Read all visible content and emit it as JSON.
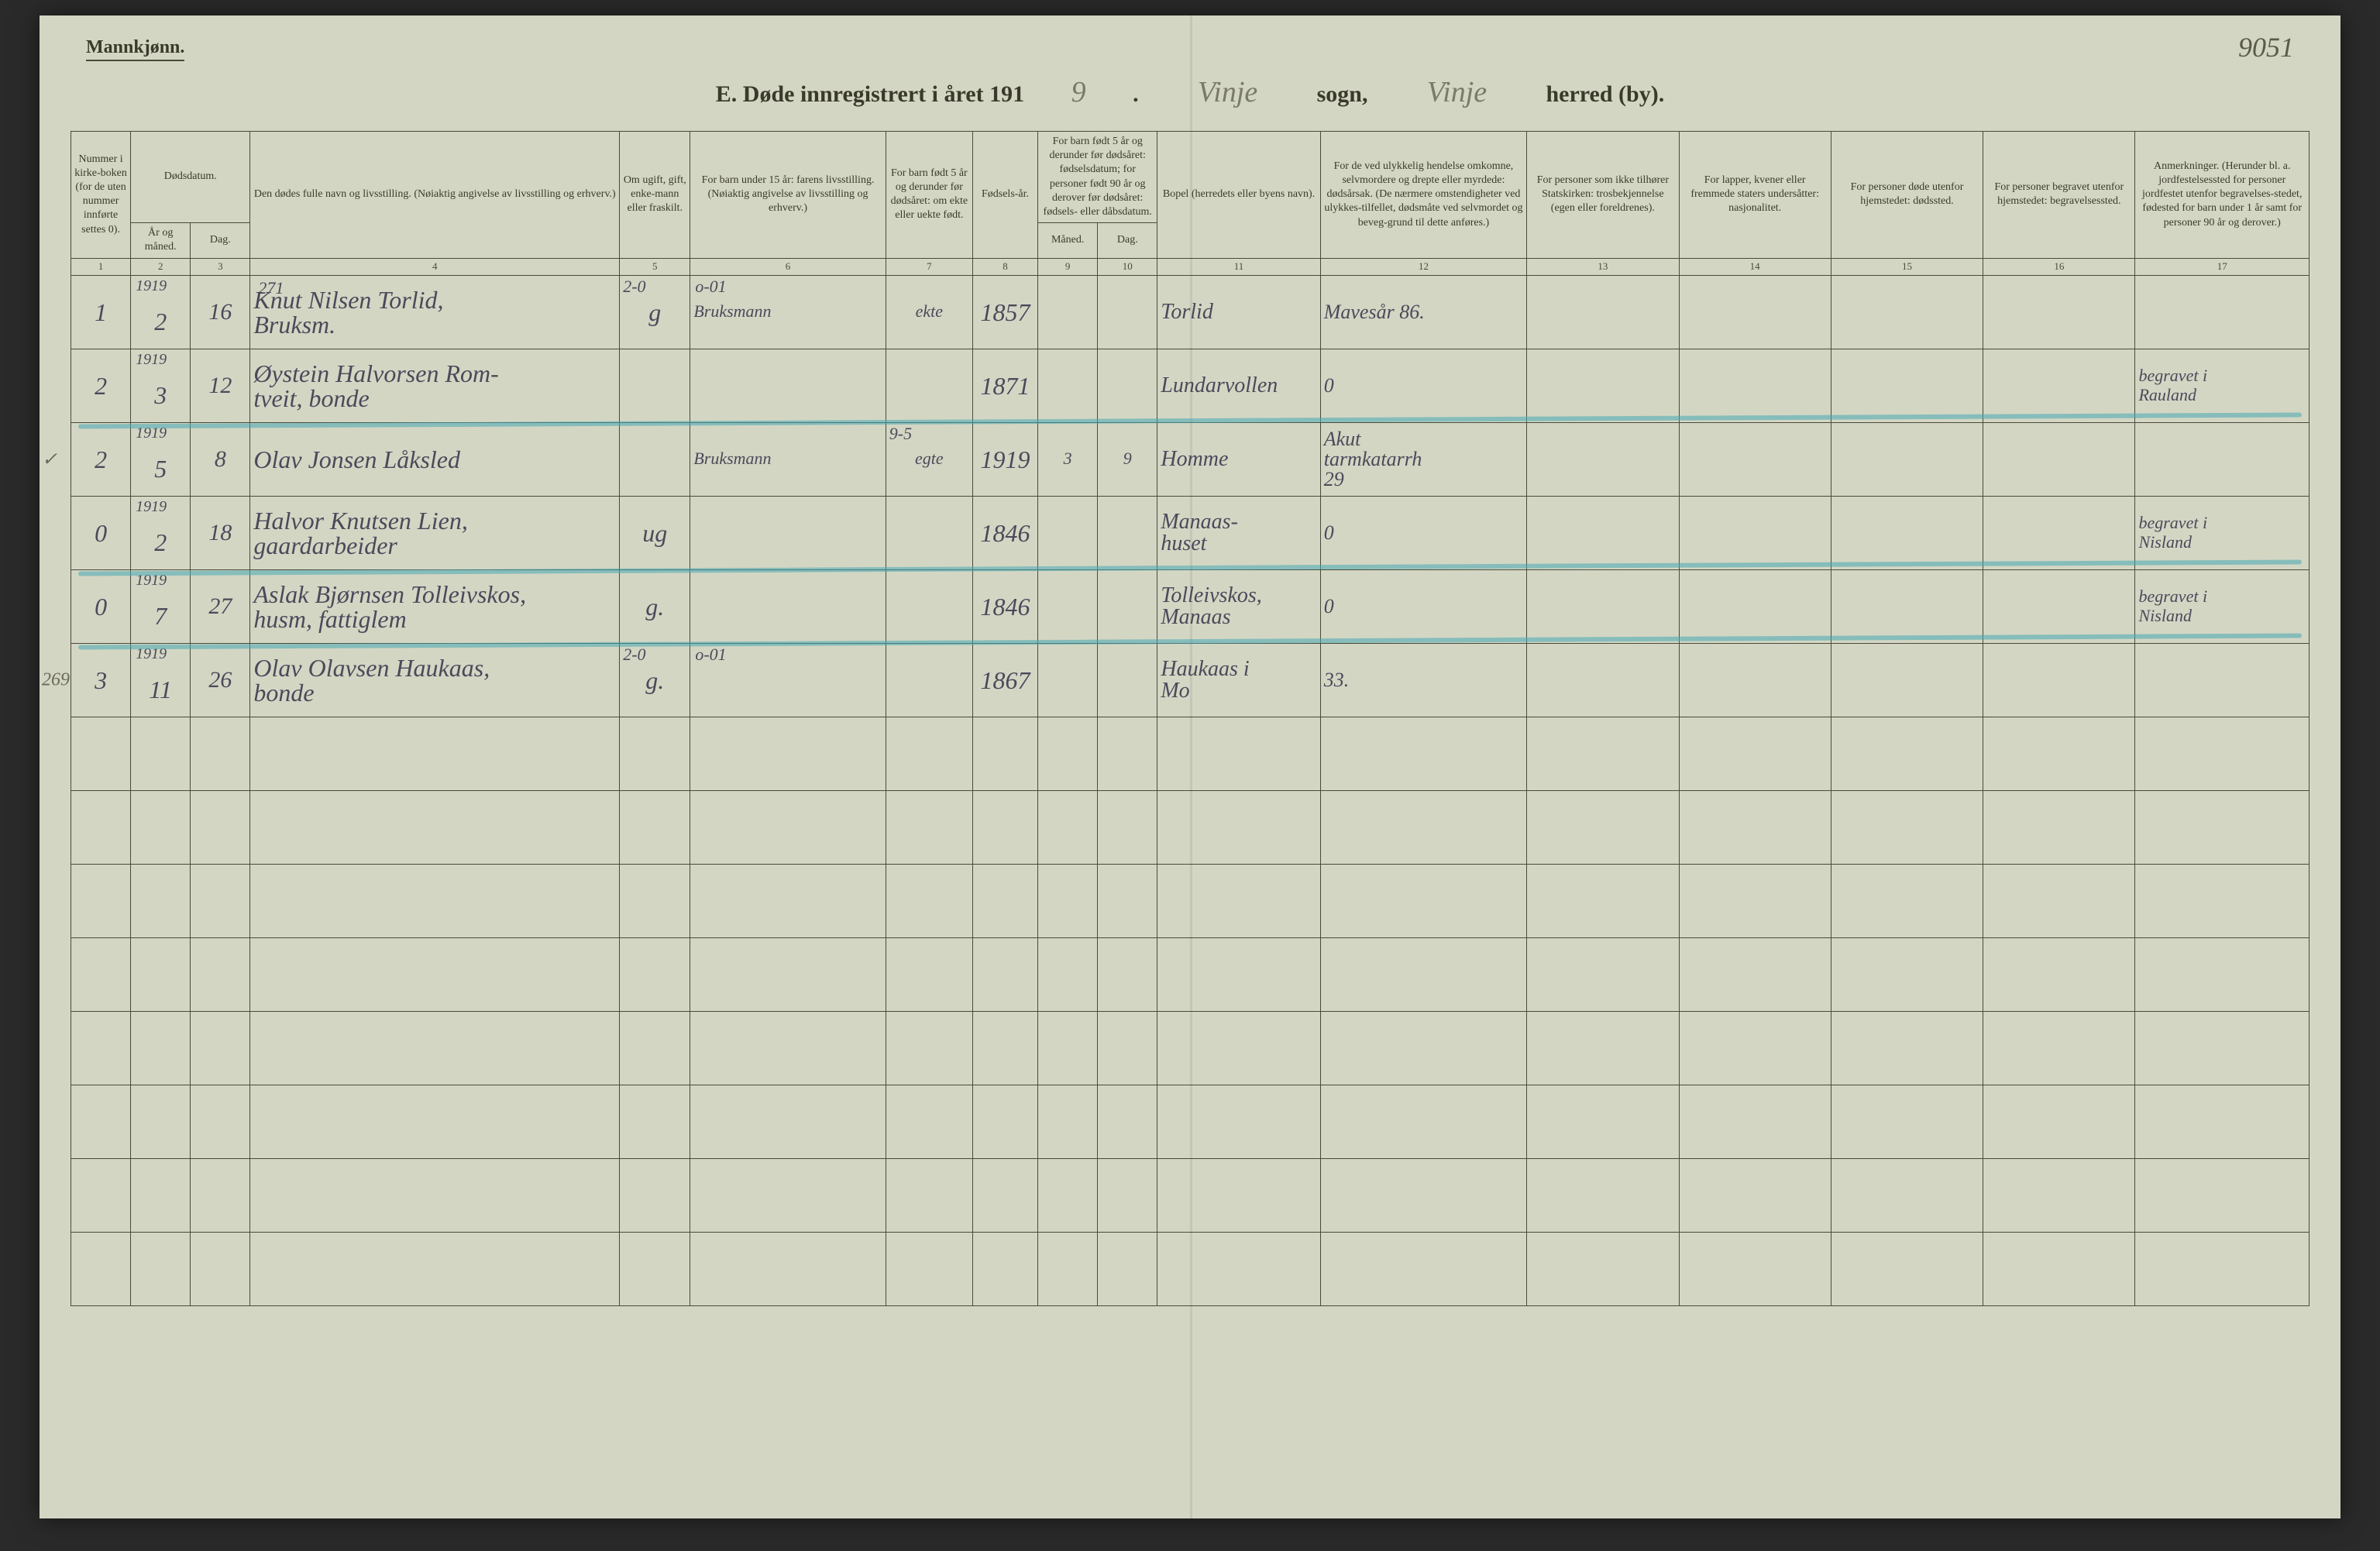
{
  "header": {
    "gender": "Mannkjønn.",
    "title_prefix": "E. Døde innregistrert i året 191",
    "year_suffix": "9",
    "period": ".",
    "sogn_hw": "Vinje",
    "sogn_label": "sogn,",
    "herred_hw": "Vinje",
    "herred_label": "herred (by).",
    "page_number": "9051"
  },
  "columns": {
    "c1": "Nummer i kirke-boken (for de uten nummer innførte settes 0).",
    "c2a": "Dødsdatum.",
    "c2b": "År og måned.",
    "c2c": "Dag.",
    "c4": "Den dødes fulle navn og livsstilling.\n(Nøiaktig angivelse av livsstilling og erhverv.)",
    "c5": "Om ugift, gift, enke-mann eller fraskilt.",
    "c6": "For barn under 15 år: farens livsstilling.\n(Nøiaktig angivelse av livsstilling og erhverv.)",
    "c7": "For barn født 5 år og derunder før dødsåret: om ekte eller uekte født.",
    "c8": "Fødsels-år.",
    "c9": "For barn født 5 år og derunder før dødsåret: fødselsdatum; for personer født 90 år og derover før dødsåret: fødsels- eller dåbsdatum.",
    "c9a": "Måned.",
    "c9b": "Dag.",
    "c11": "Bopel\n(herredets eller byens navn).",
    "c12": "For de ved ulykkelig hendelse omkomne, selvmordere og drepte eller myrdede: dødsårsak.\n(De nærmere omstendigheter ved ulykkes-tilfellet, dødsmåte ved selvmordet og beveg-grund til dette anføres.)",
    "c13": "For personer som ikke tilhører Statskirken: trosbekjennelse (egen eller foreldrenes).",
    "c14": "For lapper, kvener eller fremmede staters undersåtter: nasjonalitet.",
    "c15": "For personer døde utenfor hjemstedet: dødssted.",
    "c16": "For personer begravet utenfor hjemstedet: begravelsessted.",
    "c17": "Anmerkninger.\n(Herunder bl. a. jordfestelsessted for personer jordfestet utenfor begravelses-stedet, fødested for barn under 1 år samt for personer 90 år og derover.)"
  },
  "col_nums": [
    "1",
    "2",
    "3",
    "4",
    "5",
    "6",
    "7",
    "8",
    "9",
    "10",
    "11",
    "12",
    "13",
    "14",
    "15",
    "16",
    "17"
  ],
  "rows": [
    {
      "num": "1",
      "margin": "",
      "yr": "1919",
      "mo": "2",
      "dag": "16",
      "name": "Knut Nilsen Torlid,\nBruksm.",
      "c4_top": "271",
      "status": "g",
      "c5_top": "2-0",
      "father": "Bruksmann",
      "c6_top": "o-01",
      "c7": "ekte",
      "fodeaar": "1857",
      "m9": "",
      "d9": "",
      "bopel": "Torlid",
      "cause": "Mavesår 86.",
      "c17": "",
      "strike": false
    },
    {
      "num": "2",
      "margin": "",
      "yr": "1919",
      "mo": "3",
      "dag": "12",
      "name": "Øystein Halvorsen Rom-\ntveit, bonde",
      "c4_top": "",
      "status": "",
      "c5_top": "",
      "father": "",
      "c6_top": "",
      "c7": "",
      "fodeaar": "1871",
      "m9": "",
      "d9": "",
      "bopel": "Lundarvollen",
      "cause": "0",
      "c17": "begravet i\nRauland",
      "strike": true
    },
    {
      "num": "2",
      "margin": "✓",
      "yr": "1919",
      "mo": "5",
      "dag": "8",
      "name": "Olav Jonsen Låksled",
      "c4_top": "",
      "status": "",
      "c5_top": "",
      "father": "Bruksmann",
      "c6_top": "",
      "c7": "egte",
      "c7_top": "9-5",
      "fodeaar": "1919",
      "m9": "3",
      "d9": "9",
      "bopel": "Homme",
      "cause": "Akut\ntarmkatarrh\n29",
      "c17": "",
      "strike": false
    },
    {
      "num": "0",
      "margin": "",
      "yr": "1919",
      "mo": "2",
      "dag": "18",
      "name": "Halvor Knutsen Lien,\ngaardarbeider",
      "c4_top": "",
      "status": "ug",
      "c5_top": "",
      "father": "",
      "c6_top": "",
      "c7": "",
      "fodeaar": "1846",
      "m9": "",
      "d9": "",
      "bopel": "Manaas-\nhuset",
      "cause": "0",
      "c17": "begravet i\nNisland",
      "strike": true
    },
    {
      "num": "0",
      "margin": "",
      "yr": "1919",
      "mo": "7",
      "dag": "27",
      "name": "Aslak Bjørnsen Tolleivskos,\nhusm, fattiglem",
      "c4_top": "",
      "status": "g.",
      "c5_top": "",
      "father": "",
      "c6_top": "",
      "c7": "",
      "fodeaar": "1846",
      "m9": "",
      "d9": "",
      "bopel": "Tolleivskos,\nManaas",
      "cause": "0",
      "c17": "begravet i\nNisland",
      "strike": true
    },
    {
      "num": "3",
      "margin": "269",
      "yr": "1919",
      "mo": "11",
      "dag": "26",
      "name": "Olav Olavsen Haukaas,\nbonde",
      "c4_top": "",
      "status": "g.",
      "c5_top": "2-0",
      "father": "",
      "c6_top": "o-01",
      "c7": "",
      "fodeaar": "1867",
      "m9": "",
      "d9": "",
      "bopel": "Haukaas i\nMo",
      "cause": "33.",
      "c17": "",
      "strike": false
    }
  ],
  "blank_rows": 8,
  "colors": {
    "paper": "#d4d6c4",
    "ink": "#3a3a2a",
    "rule": "#4a4a3a",
    "handwriting": "#4a4a5a",
    "blue_pencil": "rgba(70,170,180,0.55)"
  }
}
